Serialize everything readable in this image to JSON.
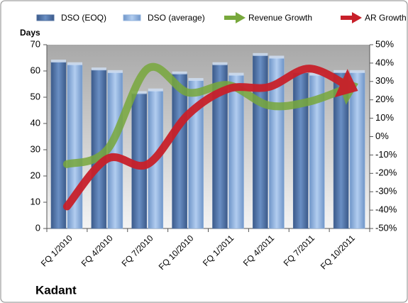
{
  "chart_data": {
    "type": "bar",
    "title": "Kadant",
    "y_label": "Days",
    "categories": [
      "FQ 1/2010",
      "FQ 4/2010",
      "FQ 7/2010",
      "FQ 10/2010",
      "FQ 1/2011",
      "FQ 4/2011",
      "FQ 7/2011",
      "FQ 10/2011"
    ],
    "series": [
      {
        "name": "DSO (EOQ)",
        "type": "bar",
        "color": "#4f6f9f",
        "values": [
          63.5,
          60.5,
          51.5,
          59,
          62.5,
          66,
          59.5,
          59.5
        ]
      },
      {
        "name": "DSO (average)",
        "type": "bar",
        "color": "#8fb1dc",
        "values": [
          62.5,
          59.5,
          52.5,
          56.5,
          58.5,
          65,
          58.5,
          59.5
        ]
      },
      {
        "name": "Revenue Growth",
        "type": "line",
        "axis": "y2",
        "color": "#78a83c",
        "values": [
          -15,
          -7,
          37,
          24,
          28,
          17,
          19,
          27
        ]
      },
      {
        "name": "AR Growth",
        "type": "line",
        "axis": "y2",
        "color": "#c8202a",
        "values": [
          -38,
          -12,
          -15,
          12,
          26,
          27,
          37,
          27
        ]
      }
    ],
    "ylim": [
      0,
      70
    ],
    "yticks": [
      0,
      10,
      20,
      30,
      40,
      50,
      60,
      70
    ],
    "y2lim": [
      -50,
      50
    ],
    "y2ticks": [
      {
        "value": -50,
        "label": "-50%"
      },
      {
        "value": -40,
        "label": "-40%"
      },
      {
        "value": -30,
        "label": "-30%"
      },
      {
        "value": -20,
        "label": "-20%"
      },
      {
        "value": -10,
        "label": "-10%"
      },
      {
        "value": 0,
        "label": "0%"
      },
      {
        "value": 10,
        "label": "10%"
      },
      {
        "value": 20,
        "label": "20%"
      },
      {
        "value": 30,
        "label": "30%"
      },
      {
        "value": 40,
        "label": "40%"
      },
      {
        "value": 50,
        "label": "50%"
      }
    ],
    "legend": "top"
  }
}
